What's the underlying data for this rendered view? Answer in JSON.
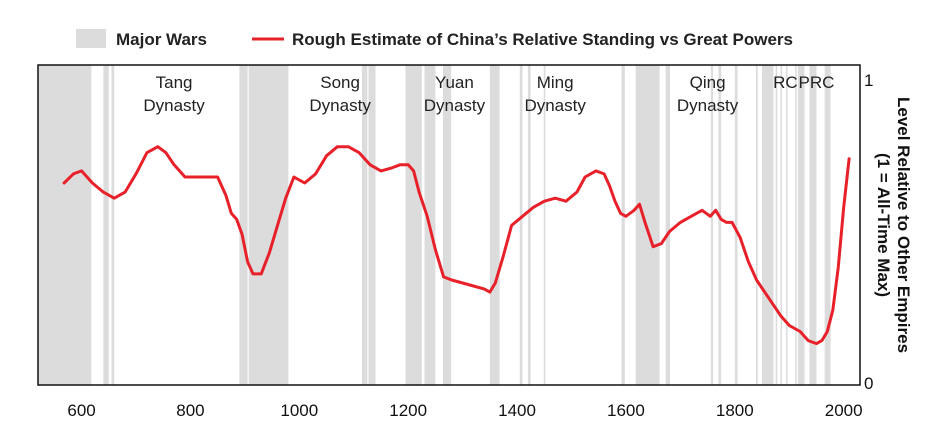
{
  "chart_data": {
    "type": "line",
    "legend": [
      {
        "name": "Major Wars",
        "kind": "band",
        "color": "#dcdcdc"
      },
      {
        "name": "Rough Estimate of China’s Relative Standing vs Great Powers",
        "kind": "line",
        "color": "#e8202a"
      }
    ],
    "legend_placement": "top",
    "xlim": [
      520,
      2030
    ],
    "ylim": [
      0,
      1
    ],
    "x_ticks": [
      "600",
      "800",
      "1000",
      "1200",
      "1400",
      "1600",
      "1800",
      "2000"
    ],
    "y_ticks": [
      "0",
      "1"
    ],
    "ylabel_lines": [
      "Level Relative to Other Empires",
      "(1 = All-Time Max)"
    ],
    "grid": false,
    "dynasty_labels": [
      {
        "lines": [
          "Tang",
          "Dynasty"
        ],
        "year": 770
      },
      {
        "lines": [
          "Song",
          "Dynasty"
        ],
        "year": 1075
      },
      {
        "lines": [
          "Yuan",
          "Dynasty"
        ],
        "year": 1285
      },
      {
        "lines": [
          "Ming",
          "Dynasty"
        ],
        "year": 1470
      },
      {
        "lines": [
          "Qing",
          "Dynasty"
        ],
        "year": 1750
      },
      {
        "lines": [
          "RC"
        ],
        "year": 1893
      },
      {
        "lines": [
          "PRC"
        ],
        "year": 1950
      }
    ],
    "war_periods": [
      [
        520,
        618
      ],
      [
        640,
        650
      ],
      [
        655,
        660
      ],
      [
        890,
        905
      ],
      [
        907,
        980
      ],
      [
        1115,
        1125
      ],
      [
        1127,
        1140
      ],
      [
        1195,
        1225
      ],
      [
        1230,
        1250
      ],
      [
        1264,
        1279
      ],
      [
        1350,
        1368
      ],
      [
        1405,
        1410
      ],
      [
        1420,
        1425
      ],
      [
        1449,
        1452
      ],
      [
        1592,
        1598
      ],
      [
        1618,
        1662
      ],
      [
        1673,
        1681
      ],
      [
        1756,
        1760
      ],
      [
        1770,
        1775
      ],
      [
        1800,
        1805
      ],
      [
        1839,
        1842
      ],
      [
        1850,
        1871
      ],
      [
        1875,
        1878
      ],
      [
        1884,
        1885
      ],
      [
        1894,
        1895
      ],
      [
        1911,
        1913
      ],
      [
        1916,
        1928
      ],
      [
        1937,
        1950
      ],
      [
        1965,
        1976
      ]
    ],
    "series": [
      {
        "name": "Rough Estimate of China’s Relative Standing vs Great Powers",
        "color": "#e8202a",
        "x": [
          568,
          585,
          600,
          620,
          640,
          660,
          680,
          700,
          720,
          740,
          755,
          770,
          790,
          810,
          830,
          850,
          865,
          875,
          885,
          895,
          905,
          915,
          930,
          945,
          960,
          975,
          990,
          1010,
          1030,
          1050,
          1070,
          1090,
          1110,
          1130,
          1150,
          1170,
          1185,
          1200,
          1210,
          1220,
          1235,
          1250,
          1265,
          1280,
          1300,
          1320,
          1340,
          1350,
          1360,
          1375,
          1390,
          1410,
          1430,
          1450,
          1470,
          1490,
          1510,
          1525,
          1545,
          1560,
          1570,
          1580,
          1590,
          1600,
          1615,
          1625,
          1635,
          1650,
          1665,
          1680,
          1700,
          1720,
          1740,
          1755,
          1765,
          1775,
          1785,
          1795,
          1810,
          1825,
          1840,
          1855,
          1870,
          1885,
          1900,
          1910,
          1920,
          1935,
          1950,
          1960,
          1970,
          1980,
          1990,
          2000,
          2010
        ],
        "y": [
          0.66,
          0.69,
          0.7,
          0.66,
          0.63,
          0.61,
          0.63,
          0.69,
          0.76,
          0.78,
          0.76,
          0.72,
          0.68,
          0.68,
          0.68,
          0.68,
          0.62,
          0.56,
          0.54,
          0.49,
          0.4,
          0.36,
          0.36,
          0.43,
          0.52,
          0.61,
          0.68,
          0.66,
          0.69,
          0.75,
          0.78,
          0.78,
          0.76,
          0.72,
          0.7,
          0.71,
          0.72,
          0.72,
          0.7,
          0.63,
          0.55,
          0.44,
          0.35,
          0.34,
          0.33,
          0.32,
          0.31,
          0.3,
          0.33,
          0.42,
          0.52,
          0.55,
          0.58,
          0.6,
          0.61,
          0.6,
          0.63,
          0.68,
          0.7,
          0.69,
          0.65,
          0.6,
          0.56,
          0.55,
          0.57,
          0.59,
          0.53,
          0.45,
          0.46,
          0.5,
          0.53,
          0.55,
          0.57,
          0.55,
          0.57,
          0.54,
          0.53,
          0.53,
          0.48,
          0.4,
          0.34,
          0.3,
          0.26,
          0.22,
          0.19,
          0.18,
          0.17,
          0.14,
          0.13,
          0.14,
          0.17,
          0.24,
          0.38,
          0.58,
          0.74
        ]
      }
    ]
  }
}
